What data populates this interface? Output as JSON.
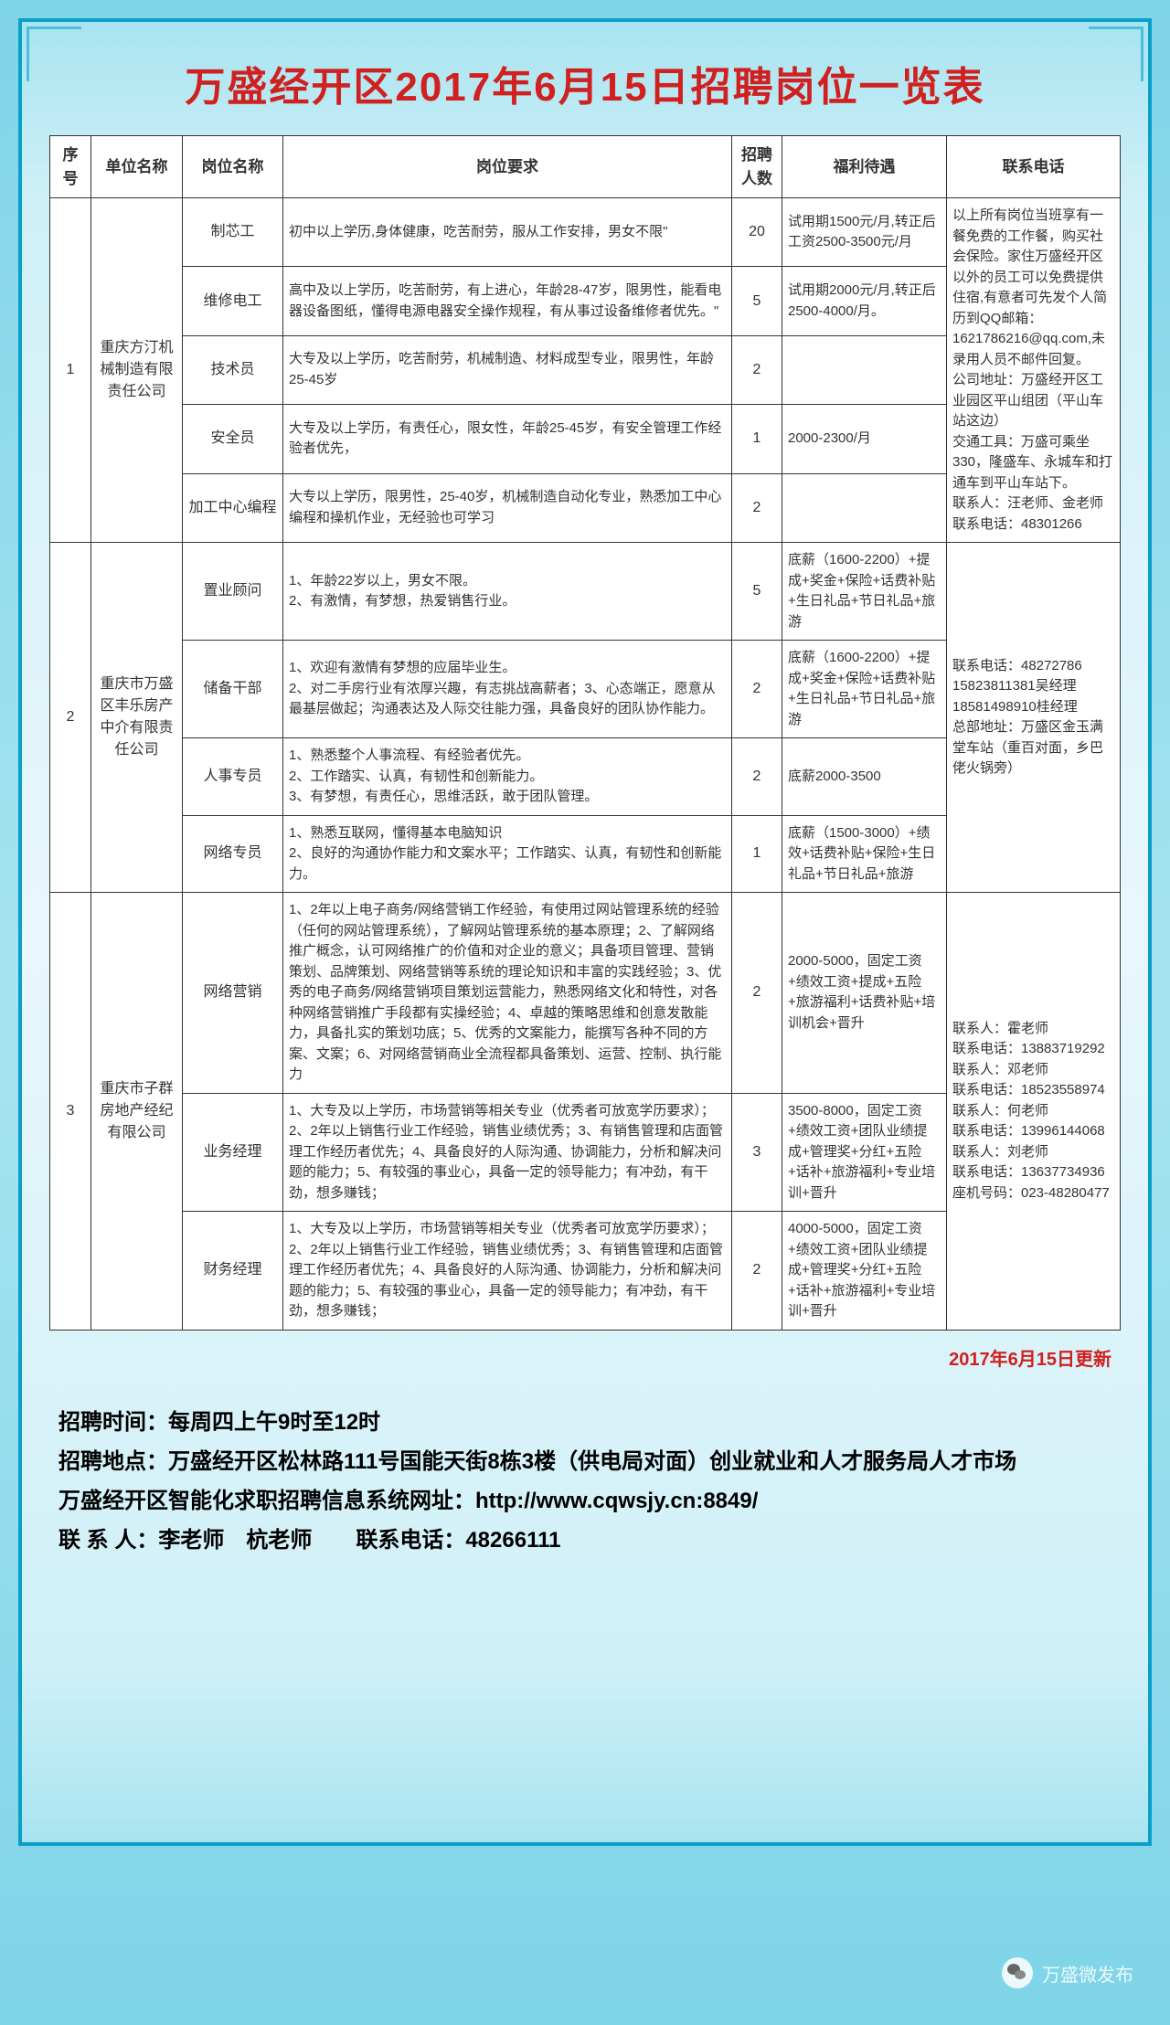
{
  "title": "万盛经开区2017年6月15日招聘岗位一览表",
  "headers": [
    "序号",
    "单位名称",
    "岗位名称",
    "岗位要求",
    "招聘人数",
    "福利待遇",
    "联系电话"
  ],
  "groups": [
    {
      "idx": "1",
      "company": "重庆方汀机械制造有限责任公司",
      "contact": "以上所有岗位当班享有一餐免费的工作餐，购买社会保险。家住万盛经开区以外的员工可以免费提供住宿,有意者可先发个人简历到QQ邮箱：1621786216@qq.com,未录用人员不邮件回复。\n公司地址：万盛经开区工业园区平山组团（平山车站这边）\n交通工具：万盛可乘坐330，隆盛车、永城车和打通车到平山车站下。\n联系人：汪老师、金老师　　联系电话：48301266",
      "positions": [
        {
          "name": "制芯工",
          "req": "初中以上学历,身体健康，吃苦耐劳，服从工作安排，男女不限\"",
          "count": "20",
          "benefit": "试用期1500元/月,转正后工资2500-3500元/月"
        },
        {
          "name": "维修电工",
          "req": "高中及以上学历，吃苦耐劳，有上进心，年龄28-47岁，限男性，能看电器设备图纸，懂得电源电器安全操作规程，有从事过设备维修者优先。\"",
          "count": "5",
          "benefit": "试用期2000元/月,转正后2500-4000/月。"
        },
        {
          "name": "技术员",
          "req": "大专及以上学历，吃苦耐劳，机械制造、材料成型专业，限男性，年龄25-45岁",
          "count": "2",
          "benefit": ""
        },
        {
          "name": "安全员",
          "req": "大专及以上学历，有责任心，限女性，年龄25-45岁，有安全管理工作经验者优先，",
          "count": "1",
          "benefit": "2000-2300/月"
        },
        {
          "name": "加工中心编程",
          "req": "大专以上学历，限男性，25-40岁，机械制造自动化专业，熟悉加工中心编程和操机作业，无经验也可学习",
          "count": "2",
          "benefit": ""
        }
      ]
    },
    {
      "idx": "2",
      "company": "重庆市万盛区丰乐房产中介有限责任公司",
      "contact": "联系电话：48272786\n15823811381吴经理\n18581498910桂经理\n总部地址：万盛区金玉满堂车站（重百对面，乡巴佬火锅旁）",
      "positions": [
        {
          "name": "置业顾问",
          "req": "1、年龄22岁以上，男女不限。\n2、有激情，有梦想，热爱销售行业。",
          "count": "5",
          "benefit": "底薪（1600-2200）+提成+奖金+保险+话费补贴+生日礼品+节日礼品+旅游"
        },
        {
          "name": "储备干部",
          "req": "1、欢迎有激情有梦想的应届毕业生。\n2、对二手房行业有浓厚兴趣，有志挑战高薪者；3、心态端正，愿意从最基层做起；沟通表达及人际交往能力强，具备良好的团队协作能力。",
          "count": "2",
          "benefit": "底薪（1600-2200）+提成+奖金+保险+话费补贴+生日礼品+节日礼品+旅游"
        },
        {
          "name": "人事专员",
          "req": "1、熟悉整个人事流程、有经验者优先。\n2、工作踏实、认真，有韧性和创新能力。\n3、有梦想，有责任心，思维活跃，敢于团队管理。",
          "count": "2",
          "benefit": "底薪2000-3500"
        },
        {
          "name": "网络专员",
          "req": "1、熟悉互联网，懂得基本电脑知识\n2、良好的沟通协作能力和文案水平；工作踏实、认真，有韧性和创新能力。",
          "count": "1",
          "benefit": "底薪（1500-3000）+绩效+话费补贴+保险+生日礼品+节日礼品+旅游"
        }
      ]
    },
    {
      "idx": "3",
      "company": "重庆市子群房地产经纪有限公司",
      "contact": "联系人：霍老师\n联系电话：13883719292\n联系人：邓老师\n联系电话：18523558974\n联系人：何老师\n联系电话：13996144068\n联系人：刘老师\n联系电话：13637734936\n座机号码：023-48280477",
      "positions": [
        {
          "name": "网络营销",
          "req": "1、2年以上电子商务/网络营销工作经验，有使用过网站管理系统的经验（任何的网站管理系统），了解网站管理系统的基本原理；2、了解网络推广概念，认可网络推广的价值和对企业的意义；具备项目管理、营销策划、品牌策划、网络营销等系统的理论知识和丰富的实践经验；3、优秀的电子商务/网络营销项目策划运营能力，熟悉网络文化和特性，对各种网络营销推广手段都有实操经验；4、卓越的策略思维和创意发散能力，具备扎实的策划功底；5、优秀的文案能力，能撰写各种不同的方案、文案；6、对网络营销商业全流程都具备策划、运营、控制、执行能力",
          "count": "2",
          "benefit": "2000-5000，固定工资+绩效工资+提成+五险+旅游福利+话费补贴+培训机会+晋升"
        },
        {
          "name": "业务经理",
          "req": "1、大专及以上学历，市场营销等相关专业（优秀者可放宽学历要求）；2、2年以上销售行业工作经验，销售业绩优秀；3、有销售管理和店面管理工作经历者优先；4、具备良好的人际沟通、协调能力，分析和解决问题的能力；5、有较强的事业心，具备一定的领导能力；有冲劲，有干劲，想多赚钱；",
          "count": "3",
          "benefit": "3500-8000，固定工资+绩效工资+团队业绩提成+管理奖+分红+五险+话补+旅游福利+专业培训+晋升"
        },
        {
          "name": "财务经理",
          "req": "1、大专及以上学历，市场营销等相关专业（优秀者可放宽学历要求）；2、2年以上销售行业工作经验，销售业绩优秀；3、有销售管理和店面管理工作经历者优先；4、具备良好的人际沟通、协调能力，分析和解决问题的能力；5、有较强的事业心，具备一定的领导能力；有冲劲，有干劲，想多赚钱；",
          "count": "2",
          "benefit": "4000-5000，固定工资+绩效工资+团队业绩提成+管理奖+分红+五险+话补+旅游福利+专业培训+晋升"
        }
      ]
    }
  ],
  "update_note": "2017年6月15日更新",
  "footer": {
    "l1": "招聘时间：每周四上午9时至12时",
    "l2": "招聘地点：万盛经开区松林路111号国能天街8栋3楼（供电局对面）创业就业和人才服务局人才市场",
    "l3": "万盛经开区智能化求职招聘信息系统网址：http://www.cqwsjy.cn:8849/",
    "l4": "联 系 人：李老师　杭老师　　联系电话：48266111"
  },
  "watermark": "万盛微发布"
}
